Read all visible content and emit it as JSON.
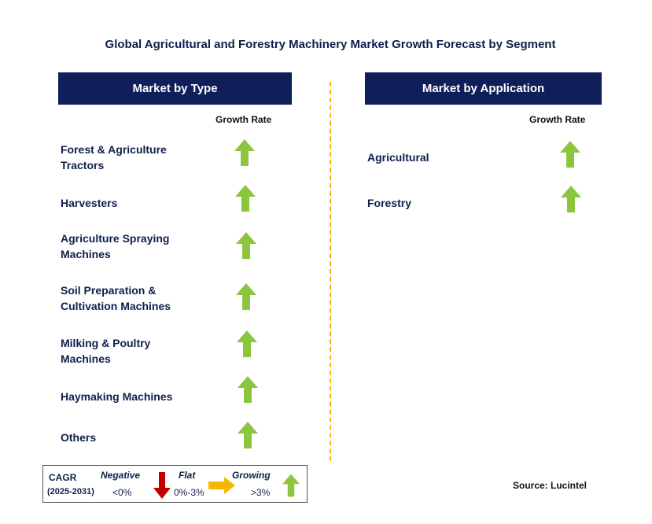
{
  "title": "Global Agricultural and Forestry Machinery Market Growth Forecast by Segment",
  "left_panel": {
    "header": "Market by Type",
    "growth_label": "Growth Rate",
    "rows": [
      {
        "label": "Forest & Agriculture Tractors",
        "growth": "growing"
      },
      {
        "label": "Harvesters",
        "growth": "growing"
      },
      {
        "label": "Agriculture Spraying Machines",
        "growth": "growing"
      },
      {
        "label": "Soil Preparation & Cultivation Machines",
        "growth": "growing"
      },
      {
        "label": "Milking & Poultry Machines",
        "growth": "growing"
      },
      {
        "label": "Haymaking Machines",
        "growth": "growing"
      },
      {
        "label": "Others",
        "growth": "growing"
      }
    ]
  },
  "right_panel": {
    "header": "Market by Application",
    "growth_label": "Growth Rate",
    "rows": [
      {
        "label": "Agricultural",
        "growth": "growing"
      },
      {
        "label": "Forestry",
        "growth": "growing"
      }
    ]
  },
  "legend": {
    "cagr_label": "CAGR",
    "period": "(2025-2031)",
    "negative_label": "Negative",
    "negative_range": "<0%",
    "flat_label": "Flat",
    "flat_range": "0%-3%",
    "growing_label": "Growing",
    "growing_range": ">3%"
  },
  "source": "Source: Lucintel",
  "colors": {
    "header_bg": "#0f1f59",
    "growing": "#8cc63f",
    "negative": "#c00000",
    "flat": "#f5b800",
    "divider": "#f5b800"
  }
}
